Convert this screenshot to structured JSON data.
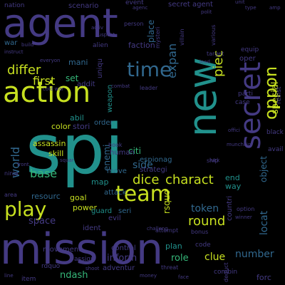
{
  "palette": {
    "yellow": "#c7e020",
    "green": "#35b779",
    "teal": "#21918c",
    "blue": "#31688e",
    "indigo": "#443a83",
    "purple": "#440154"
  },
  "words": [
    {
      "text": "spi",
      "size": 96,
      "color": "teal",
      "rot": 0
    },
    {
      "text": "mission",
      "size": 60,
      "color": "indigo",
      "rot": 0
    },
    {
      "text": "agent",
      "size": 56,
      "color": "indigo",
      "rot": 0
    },
    {
      "text": "new",
      "size": 54,
      "color": "teal",
      "rot": 270
    },
    {
      "text": "action",
      "size": 40,
      "color": "yellow",
      "rot": 0
    },
    {
      "text": "secret",
      "size": 40,
      "color": "indigo",
      "rot": 270
    },
    {
      "text": "team",
      "size": 30,
      "color": "yellow",
      "rot": 0
    },
    {
      "text": "play",
      "size": 28,
      "color": "yellow",
      "rot": 0
    },
    {
      "text": "time",
      "size": 28,
      "color": "blue",
      "rot": 0
    },
    {
      "text": "oppon",
      "size": 24,
      "color": "yellow",
      "rot": 270
    },
    {
      "text": "dice",
      "size": 18,
      "color": "yellow",
      "rot": 0
    },
    {
      "text": "charact",
      "size": 18,
      "color": "yellow",
      "rot": 0
    },
    {
      "text": "round",
      "size": 18,
      "color": "yellow",
      "rot": 0
    },
    {
      "text": "differ",
      "size": 18,
      "color": "yellow",
      "rot": 0
    },
    {
      "text": "first",
      "size": 16,
      "color": "yellow",
      "rot": 0
    },
    {
      "text": "piec",
      "size": 18,
      "color": "yellow",
      "rot": 270
    },
    {
      "text": "expan",
      "size": 16,
      "color": "blue",
      "rot": 270
    },
    {
      "text": "world",
      "size": 16,
      "color": "blue",
      "rot": 270
    },
    {
      "text": "base",
      "size": 16,
      "color": "green",
      "rot": 0
    },
    {
      "text": "token",
      "size": 14,
      "color": "blue",
      "rot": 0
    },
    {
      "text": "side",
      "size": 14,
      "color": "blue",
      "rot": 0
    },
    {
      "text": "clue",
      "size": 14,
      "color": "yellow",
      "rot": 0
    },
    {
      "text": "number",
      "size": 14,
      "color": "blue",
      "rot": 0
    },
    {
      "text": "space",
      "size": 13,
      "color": "indigo",
      "rot": 0
    },
    {
      "text": "inform",
      "size": 13,
      "color": "indigo",
      "rot": 0
    },
    {
      "text": "role",
      "size": 13,
      "color": "green",
      "rot": 0
    },
    {
      "text": "ndash",
      "size": 13,
      "color": "green",
      "rot": 0
    },
    {
      "text": "locat",
      "size": 14,
      "color": "blue",
      "rot": 270
    },
    {
      "text": "object",
      "size": 12,
      "color": "blue",
      "rot": 270
    },
    {
      "text": "special",
      "size": 13,
      "color": "yellow",
      "rot": 270
    },
    {
      "text": "rsquo",
      "size": 12,
      "color": "yellow",
      "rot": 270
    },
    {
      "text": "enemi",
      "size": 12,
      "color": "blue",
      "rot": 270
    },
    {
      "text": "place",
      "size": 12,
      "color": "blue",
      "rot": 270
    },
    {
      "text": "citi",
      "size": 12,
      "color": "green",
      "rot": 0
    },
    {
      "text": "set",
      "size": 12,
      "color": "green",
      "rot": 0
    },
    {
      "text": "abil",
      "size": 11,
      "color": "teal",
      "rot": 0
    },
    {
      "text": "stori",
      "size": 11,
      "color": "indigo",
      "rot": 0
    },
    {
      "text": "color",
      "size": 11,
      "color": "yellow",
      "rot": 0
    },
    {
      "text": "assassin",
      "size": 11,
      "color": "yellow",
      "rot": 0
    },
    {
      "text": "skill",
      "size": 11,
      "color": "yellow",
      "rot": 0
    },
    {
      "text": "resourc",
      "size": 11,
      "color": "blue",
      "rot": 0
    },
    {
      "text": "goal",
      "size": 11,
      "color": "yellow",
      "rot": 0
    },
    {
      "text": "power",
      "size": 11,
      "color": "yellow",
      "rot": 0
    },
    {
      "text": "end",
      "size": 11,
      "color": "teal",
      "rot": 0
    },
    {
      "text": "way",
      "size": 11,
      "color": "teal",
      "rot": 0
    },
    {
      "text": "map",
      "size": 11,
      "color": "teal",
      "rot": 0
    },
    {
      "text": "human",
      "size": 10,
      "color": "indigo",
      "rot": 0
    },
    {
      "text": "move",
      "size": 10,
      "color": "blue",
      "rot": 0
    },
    {
      "text": "attack",
      "size": 10,
      "color": "blue",
      "rot": 0
    },
    {
      "text": "seri",
      "size": 10,
      "color": "blue",
      "rot": 0
    },
    {
      "text": "evil",
      "size": 10,
      "color": "indigo",
      "rot": 0
    },
    {
      "text": "guard",
      "size": 10,
      "color": "teal",
      "rot": 0
    },
    {
      "text": "order",
      "size": 10,
      "color": "blue",
      "rot": 0
    },
    {
      "text": "faction",
      "size": 11,
      "color": "indigo",
      "rot": 0
    },
    {
      "text": "mani",
      "size": 11,
      "color": "blue",
      "rot": 0
    },
    {
      "text": "addit",
      "size": 10,
      "color": "indigo",
      "rot": 0
    },
    {
      "text": "uniqu",
      "size": 10,
      "color": "indigo",
      "rot": 270
    },
    {
      "text": "weapon",
      "size": 10,
      "color": "teal",
      "rot": 270
    },
    {
      "text": "espionag",
      "size": 10,
      "color": "blue",
      "rot": 0
    },
    {
      "text": "strategi",
      "size": 10,
      "color": "indigo",
      "rot": 0
    },
    {
      "text": "countri",
      "size": 10,
      "color": "indigo",
      "rot": 270
    },
    {
      "text": "plan",
      "size": 11,
      "color": "teal",
      "rot": 0
    },
    {
      "text": "adventur",
      "size": 10,
      "color": "indigo",
      "rot": 0
    },
    {
      "text": "control",
      "size": 10,
      "color": "indigo",
      "rot": 0
    },
    {
      "text": "movement",
      "size": 10,
      "color": "indigo",
      "rot": 0
    },
    {
      "text": "ident",
      "size": 10,
      "color": "indigo",
      "rot": 0
    },
    {
      "text": "scenario",
      "size": 10,
      "color": "indigo",
      "rot": 0
    },
    {
      "text": "nation",
      "size": 9,
      "color": "indigo",
      "rot": 0
    },
    {
      "text": "event",
      "size": 9,
      "color": "indigo",
      "rot": 0
    },
    {
      "text": "secret agent",
      "size": 10,
      "color": "indigo",
      "rot": 0
    },
    {
      "text": "war",
      "size": 10,
      "color": "blue",
      "rot": 0
    },
    {
      "text": "forc",
      "size": 11,
      "color": "indigo",
      "rot": 0
    },
    {
      "text": "combin",
      "size": 9,
      "color": "indigo",
      "rot": 0
    },
    {
      "text": "oper",
      "size": 10,
      "color": "indigo",
      "rot": 0
    },
    {
      "text": "parti",
      "size": 9,
      "color": "indigo",
      "rot": 0
    },
    {
      "text": "equip",
      "size": 9,
      "color": "indigo",
      "rot": 0
    },
    {
      "text": "case",
      "size": 9,
      "color": "indigo",
      "rot": 0
    },
    {
      "text": "black",
      "size": 9,
      "color": "indigo",
      "rot": 0
    },
    {
      "text": "avail",
      "size": 9,
      "color": "indigo",
      "rot": 0
    },
    {
      "text": "resist",
      "size": 9,
      "color": "indigo",
      "rot": 270
    },
    {
      "text": "alien",
      "size": 9,
      "color": "indigo",
      "rot": 0
    },
    {
      "text": "rdquo",
      "size": 9,
      "color": "indigo",
      "rot": 0
    },
    {
      "text": "item",
      "size": 9,
      "color": "indigo",
      "rot": 0
    },
    {
      "text": "assign",
      "size": 9,
      "color": "indigo",
      "rot": 0
    },
    {
      "text": "code",
      "size": 9,
      "color": "indigo",
      "rot": 0
    },
    {
      "text": "threat",
      "size": 8,
      "color": "indigo",
      "rot": 0
    },
    {
      "text": "bonus",
      "size": 8,
      "color": "indigo",
      "rot": 0
    },
    {
      "text": "attempt",
      "size": 8,
      "color": "indigo",
      "rot": 0
    },
    {
      "text": "book",
      "size": 8,
      "color": "indigo",
      "rot": 0
    },
    {
      "text": "area",
      "size": 8,
      "color": "indigo",
      "rot": 0
    },
    {
      "text": "ninja",
      "size": 8,
      "color": "indigo",
      "rot": 0
    },
    {
      "text": "person",
      "size": 8,
      "color": "indigo",
      "rot": 0
    },
    {
      "text": "target",
      "size": 8,
      "color": "indigo",
      "rot": 0
    },
    {
      "text": "mysteri",
      "size": 8,
      "color": "indigo",
      "rot": 270
    },
    {
      "text": "villain",
      "size": 8,
      "color": "indigo",
      "rot": 270
    },
    {
      "text": "various",
      "size": 8,
      "color": "indigo",
      "rot": 270
    },
    {
      "text": "leader",
      "size": 8,
      "color": "indigo",
      "rot": 0
    },
    {
      "text": "ship",
      "size": 8,
      "color": "indigo",
      "rot": 0
    },
    {
      "text": "option",
      "size": 8,
      "color": "indigo",
      "rot": 0
    },
    {
      "text": "deduct",
      "size": 8,
      "color": "indigo",
      "rot": 270
    },
    {
      "text": "money",
      "size": 7,
      "color": "indigo",
      "rot": 0
    },
    {
      "text": "luck",
      "size": 7,
      "color": "indigo",
      "rot": 0
    },
    {
      "text": "winner",
      "size": 7,
      "color": "indigo",
      "rot": 0
    },
    {
      "text": "front",
      "size": 7,
      "color": "indigo",
      "rot": 0
    },
    {
      "text": "build",
      "size": 7,
      "color": "indigo",
      "rot": 0
    },
    {
      "text": "instruct",
      "size": 7,
      "color": "indigo",
      "rot": 0
    },
    {
      "text": "challeng",
      "size": 7,
      "color": "indigo",
      "rot": 0
    },
    {
      "text": "face",
      "size": 7,
      "color": "indigo",
      "rot": 0
    },
    {
      "text": "line",
      "size": 7,
      "color": "indigo",
      "rot": 0
    },
    {
      "text": "unit",
      "size": 7,
      "color": "indigo",
      "rot": 0
    },
    {
      "text": "amp",
      "size": 7,
      "color": "indigo",
      "rot": 0
    },
    {
      "text": "type",
      "size": 7,
      "color": "indigo",
      "rot": 0
    },
    {
      "text": "agenc",
      "size": 7,
      "color": "indigo",
      "rot": 0
    },
    {
      "text": "polit",
      "size": 7,
      "color": "indigo",
      "rot": 0
    },
    {
      "text": "activ",
      "size": 7,
      "color": "indigo",
      "rot": 0
    },
    {
      "text": "suspect",
      "size": 7,
      "color": "indigo",
      "rot": 0
    },
    {
      "text": "everyon",
      "size": 7,
      "color": "indigo",
      "rot": 0
    },
    {
      "text": "lead",
      "size": 7,
      "color": "indigo",
      "rot": 0
    },
    {
      "text": "cold war",
      "size": 7,
      "color": "indigo",
      "rot": 0
    },
    {
      "text": "offici",
      "size": 7,
      "color": "indigo",
      "rot": 0
    },
    {
      "text": "munchkin",
      "size": 7,
      "color": "indigo",
      "rot": 0
    },
    {
      "text": "squar",
      "size": 7,
      "color": "indigo",
      "rot": 0
    },
    {
      "text": "combat",
      "size": 7,
      "color": "indigo",
      "rot": 0
    },
    {
      "text": "shoot",
      "size": 7,
      "color": "indigo",
      "rot": 0
    }
  ]
}
